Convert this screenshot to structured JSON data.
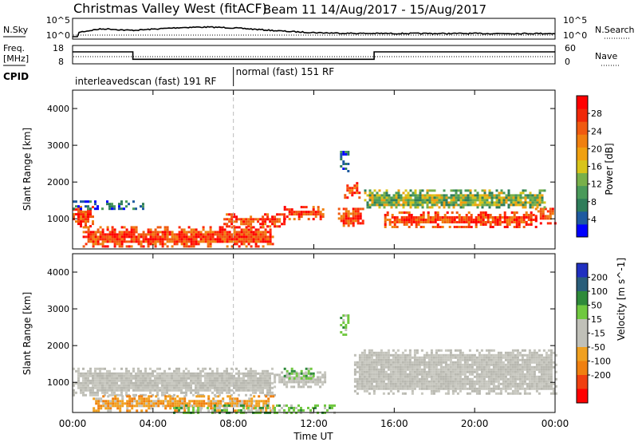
{
  "header": {
    "station": "Christmas Valley West (fitACF)",
    "beam_info": "Beam 11  14/Aug/2017 - 15/Aug/2017"
  },
  "noise_panel": {
    "left_label": "N.Sky",
    "right_label": "N.Search",
    "left_ticks": [
      "10^5",
      "10^0"
    ],
    "right_ticks": [
      "10^5",
      "10^0"
    ]
  },
  "freq_panel": {
    "left_label": "Freq.",
    "left_unit": "[MHz]",
    "left_ticks": [
      "18",
      "8"
    ],
    "right_label": "Nave",
    "right_ticks": [
      "60",
      "0"
    ],
    "freq_steps": [
      {
        "start": 0,
        "end": 3.0,
        "mhz": 14.5
      },
      {
        "start": 3.0,
        "end": 15.0,
        "mhz": 10.5
      },
      {
        "start": 15.0,
        "end": 24.0,
        "mhz": 14.5
      }
    ]
  },
  "cpid": {
    "label": "CPID",
    "segments": [
      {
        "start": 0,
        "end": 8.0,
        "name": "interleavedscan (fast) 191 RF"
      },
      {
        "start": 8.0,
        "end": 24.0,
        "name": "normal (fast) 151 RF"
      }
    ]
  },
  "chart_data": [
    {
      "type": "heatmap",
      "title": "",
      "xlabel": "",
      "ylabel": "Slant Range [km]",
      "xlim": [
        0,
        24
      ],
      "ylim": [
        180,
        4500
      ],
      "x_ticks": [
        "00:00",
        "04:00",
        "08:00",
        "12:00",
        "16:00",
        "20:00",
        "00:00"
      ],
      "y_ticks": [
        1000,
        2000,
        3000,
        4000
      ],
      "colorbar": {
        "label": "Power [dB]",
        "range": [
          0,
          32
        ],
        "ticks": [
          4,
          8,
          12,
          16,
          20,
          24,
          28
        ],
        "colors": [
          "#0000ff",
          "#1e5aa0",
          "#2e7d5a",
          "#4a9a5a",
          "#78b04a",
          "#d8c41a",
          "#f0a010",
          "#f08010",
          "#f05a10",
          "#f02808",
          "#ff0000"
        ]
      },
      "echo_regions": [
        {
          "t0": 0.0,
          "t1": 1.0,
          "r0": 800,
          "r1": 1350,
          "level": "high"
        },
        {
          "t0": 0.5,
          "t1": 10.0,
          "r0": 250,
          "r1": 800,
          "level": "high"
        },
        {
          "t0": 7.5,
          "t1": 10.5,
          "r0": 800,
          "r1": 1150,
          "level": "high"
        },
        {
          "t0": 10.5,
          "t1": 12.5,
          "r0": 1000,
          "r1": 1350,
          "level": "high"
        },
        {
          "t0": 13.2,
          "t1": 14.5,
          "r0": 800,
          "r1": 1300,
          "level": "high"
        },
        {
          "t0": 13.5,
          "t1": 14.3,
          "r0": 1600,
          "r1": 2000,
          "level": "high"
        },
        {
          "t0": 15.5,
          "t1": 23.0,
          "r0": 800,
          "r1": 1200,
          "level": "high"
        },
        {
          "t0": 23.0,
          "t1": 24.0,
          "r0": 900,
          "r1": 1300,
          "level": "high"
        },
        {
          "t0": 13.3,
          "t1": 13.7,
          "r0": 2300,
          "r1": 2850,
          "level": "low"
        },
        {
          "t0": 14.5,
          "t1": 23.5,
          "r0": 1300,
          "r1": 1800,
          "level": "medium"
        },
        {
          "t0": 0.0,
          "t1": 3.5,
          "r0": 1300,
          "r1": 1500,
          "level": "low"
        }
      ]
    },
    {
      "type": "heatmap",
      "title": "",
      "xlabel": "Time UT",
      "ylabel": "Slant Range [km]",
      "xlim": [
        0,
        24
      ],
      "ylim": [
        180,
        4500
      ],
      "x_ticks": [
        "00:00",
        "04:00",
        "08:00",
        "12:00",
        "16:00",
        "20:00",
        "00:00"
      ],
      "y_ticks": [
        1000,
        2000,
        3000,
        4000
      ],
      "colorbar": {
        "label": "Velocity [m s^-1]",
        "ticks": [
          "200",
          "100",
          "50",
          "15",
          "-15",
          "-50",
          "-100",
          "-200"
        ],
        "colors": [
          "#2030c0",
          "#2a5e7a",
          "#2e8a3a",
          "#70c840",
          "#c0c0b8",
          "#c0c0b8",
          "#f0a020",
          "#f08010",
          "#f04010",
          "#ff0000"
        ]
      },
      "echo_regions": [
        {
          "t0": 0.0,
          "t1": 10.0,
          "r0": 650,
          "r1": 1400,
          "level": "ground"
        },
        {
          "t0": 10.0,
          "t1": 12.5,
          "r0": 900,
          "r1": 1300,
          "level": "ground"
        },
        {
          "t0": 14.0,
          "t1": 24.0,
          "r0": 700,
          "r1": 1900,
          "level": "ground"
        },
        {
          "t0": 1.0,
          "t1": 10.0,
          "r0": 250,
          "r1": 650,
          "level": "neg"
        },
        {
          "t0": 5.0,
          "t1": 13.0,
          "r0": 180,
          "r1": 400,
          "level": "pos"
        },
        {
          "t0": 10.5,
          "t1": 12.0,
          "r0": 1100,
          "r1": 1400,
          "level": "pos"
        },
        {
          "t0": 13.3,
          "t1": 13.7,
          "r0": 2300,
          "r1": 2850,
          "level": "pos"
        }
      ]
    }
  ]
}
